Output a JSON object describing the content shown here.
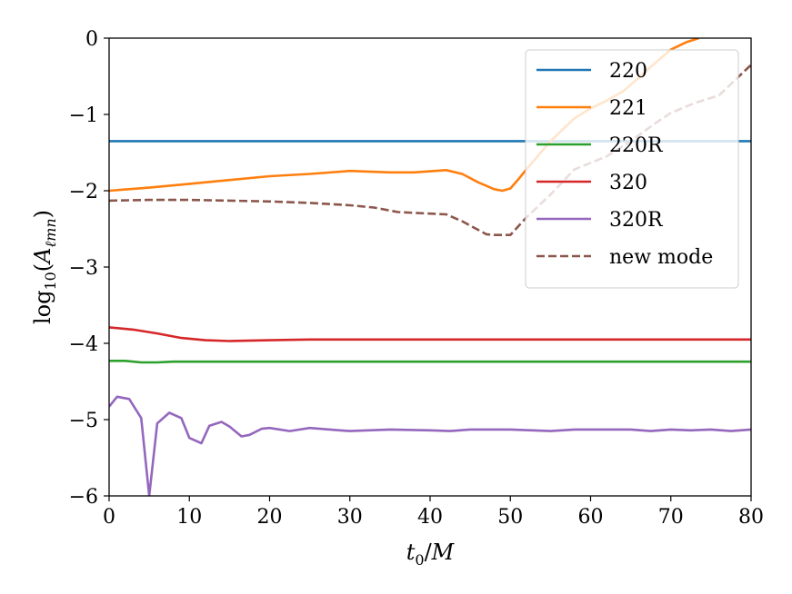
{
  "chart_data": {
    "type": "line",
    "xlabel": "t_0/M",
    "ylabel": "log_10(A_ℓmn)",
    "xlim": [
      0,
      80
    ],
    "ylim": [
      -6,
      0
    ],
    "xticks": [
      0,
      10,
      20,
      30,
      40,
      50,
      60,
      70,
      80
    ],
    "yticks": [
      0,
      -1,
      -2,
      -3,
      -4,
      -5,
      -6
    ],
    "xtick_labels": [
      "0",
      "10",
      "20",
      "30",
      "40",
      "50",
      "60",
      "70",
      "80"
    ],
    "ytick_labels": [
      "0",
      "−1",
      "−2",
      "−3",
      "−4",
      "−5",
      "−6"
    ],
    "grid": false,
    "legend_position": "top-right",
    "series": [
      {
        "name": "220",
        "color": "#1f77b4",
        "dashed": false,
        "x": [
          0,
          80
        ],
        "y": [
          -1.35,
          -1.35
        ]
      },
      {
        "name": "221",
        "color": "#ff7f0e",
        "dashed": false,
        "x": [
          0,
          5,
          10,
          15,
          20,
          25,
          30,
          35,
          38,
          42,
          44,
          46,
          48,
          49,
          50,
          51,
          52,
          55,
          58,
          60,
          62,
          64,
          66,
          68,
          70,
          72,
          73.5
        ],
        "y": [
          -2.0,
          -1.96,
          -1.91,
          -1.86,
          -1.81,
          -1.78,
          -1.74,
          -1.76,
          -1.76,
          -1.73,
          -1.78,
          -1.89,
          -1.98,
          -2.0,
          -1.97,
          -1.85,
          -1.72,
          -1.35,
          -1.05,
          -0.92,
          -0.82,
          -0.7,
          -0.52,
          -0.33,
          -0.15,
          -0.05,
          0.0
        ]
      },
      {
        "name": "220R",
        "color": "#2ca02c",
        "dashed": false,
        "x": [
          0,
          2,
          4,
          6,
          8,
          10,
          14,
          20,
          30,
          40,
          50,
          60,
          70,
          80
        ],
        "y": [
          -4.23,
          -4.23,
          -4.25,
          -4.25,
          -4.24,
          -4.24,
          -4.24,
          -4.24,
          -4.24,
          -4.24,
          -4.24,
          -4.24,
          -4.24,
          -4.24
        ]
      },
      {
        "name": "320",
        "color": "#d62728",
        "dashed": false,
        "x": [
          0,
          3,
          6,
          9,
          12,
          15,
          20,
          25,
          30,
          40,
          50,
          60,
          70,
          80
        ],
        "y": [
          -3.79,
          -3.82,
          -3.87,
          -3.93,
          -3.96,
          -3.97,
          -3.96,
          -3.95,
          -3.95,
          -3.95,
          -3.95,
          -3.95,
          -3.95,
          -3.95
        ]
      },
      {
        "name": "320R",
        "color": "#9467bd",
        "dashed": false,
        "x": [
          0,
          1,
          2.5,
          4,
          5,
          6,
          7.5,
          9,
          10,
          11.5,
          12.5,
          14,
          15,
          16.5,
          17.5,
          19,
          20,
          22.5,
          25,
          27.5,
          30,
          35,
          40,
          42.5,
          45,
          50,
          55,
          58,
          60,
          62.5,
          65,
          67.5,
          70,
          72.5,
          75,
          77.5,
          80
        ],
        "y": [
          -4.83,
          -4.7,
          -4.73,
          -4.98,
          -6.0,
          -5.05,
          -4.91,
          -4.98,
          -5.24,
          -5.31,
          -5.08,
          -5.03,
          -5.09,
          -5.22,
          -5.2,
          -5.12,
          -5.11,
          -5.15,
          -5.11,
          -5.13,
          -5.15,
          -5.13,
          -5.14,
          -5.15,
          -5.13,
          -5.13,
          -5.15,
          -5.13,
          -5.13,
          -5.13,
          -5.13,
          -5.15,
          -5.13,
          -5.14,
          -5.13,
          -5.15,
          -5.13
        ]
      },
      {
        "name": "new mode",
        "color": "#8c564b",
        "dashed": true,
        "x": [
          0,
          5,
          10,
          15,
          20,
          25,
          30,
          33,
          36,
          40,
          42,
          44,
          47,
          48,
          50,
          52,
          55,
          58,
          62,
          65,
          68,
          70,
          73,
          76,
          78,
          80
        ],
        "y": [
          -2.13,
          -2.12,
          -2.12,
          -2.13,
          -2.14,
          -2.16,
          -2.19,
          -2.22,
          -2.28,
          -2.3,
          -2.31,
          -2.4,
          -2.57,
          -2.58,
          -2.58,
          -2.35,
          -2.05,
          -1.72,
          -1.55,
          -1.35,
          -1.12,
          -0.98,
          -0.85,
          -0.75,
          -0.55,
          -0.35
        ]
      }
    ]
  }
}
